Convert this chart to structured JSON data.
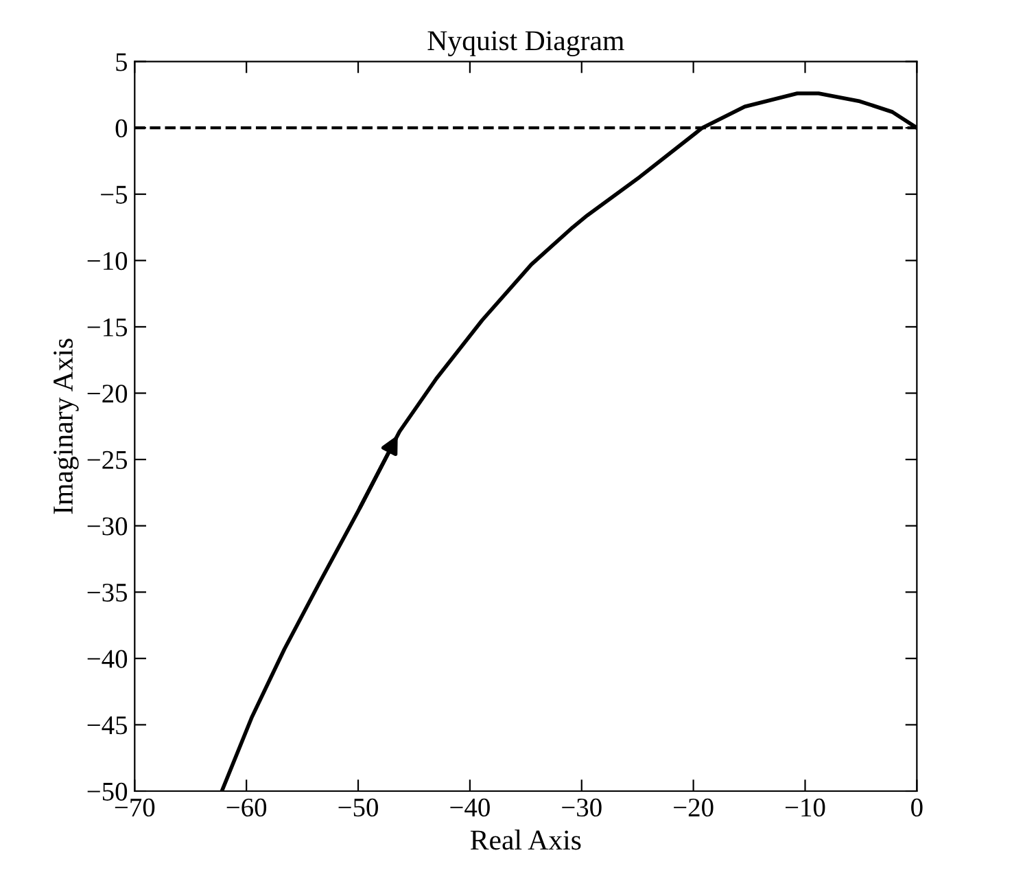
{
  "chart_data": {
    "type": "line",
    "title": "Nyquist Diagram",
    "xlabel": "Real Axis",
    "ylabel": "Imaginary Axis",
    "series": [
      {
        "color": "#000000",
        "x": [
          -62.2,
          -59.5,
          -56.6,
          -53.4,
          -50,
          -46.3,
          -43.0,
          -38.9,
          -34.5,
          -30.8,
          -29.5,
          -24.8,
          -19.2,
          -15.4,
          -10.7,
          -8.8,
          -5.1,
          -2.2,
          0
        ],
        "values": [
          -50,
          -44.4,
          -39.3,
          -34.2,
          -28.9,
          -22.9,
          -18.9,
          -14.5,
          -10.3,
          -7.5,
          -6.6,
          -3.7,
          0,
          1.6,
          2.6,
          2.6,
          2.0,
          1.2,
          0
        ]
      }
    ],
    "xlim": [
      -70,
      0
    ],
    "xticks": [
      -70,
      -60,
      -50,
      -40,
      -30,
      -20,
      -10,
      0
    ],
    "ylim": [
      -50,
      5
    ],
    "yticks": [
      -50,
      -45,
      -40,
      -35,
      -30,
      -25,
      -20,
      -15,
      -10,
      -5,
      0,
      5
    ],
    "ref_lines": [
      {
        "axis": "y",
        "value": 0,
        "color": "#000000",
        "line_style": "dashed"
      }
    ],
    "grid": false,
    "legend": false,
    "marker": "none",
    "line_style": "solid"
  }
}
